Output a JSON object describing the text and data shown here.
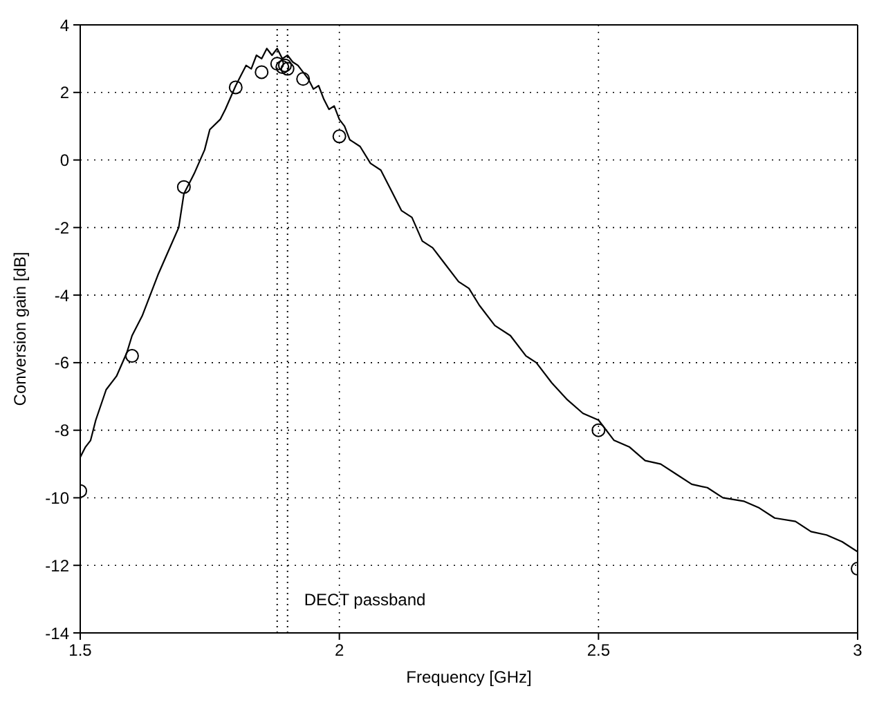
{
  "chart_data": {
    "type": "line",
    "xlabel": "Frequency [GHz]",
    "ylabel": "Conversion gain [dB]",
    "xlim": [
      1.5,
      3
    ],
    "xticks": [
      1.5,
      2,
      2.5,
      3
    ],
    "ylim": [
      -14,
      4
    ],
    "yticks": [
      -14,
      -12,
      -10,
      -8,
      -6,
      -4,
      -2,
      0,
      2,
      4
    ],
    "grid": true,
    "legend": false,
    "series": [
      {
        "type": "line",
        "color": "#000000",
        "marker": "none",
        "line_style": "solid",
        "x": [
          1.5,
          1.51,
          1.52,
          1.53,
          1.55,
          1.57,
          1.59,
          1.6,
          1.62,
          1.64,
          1.65,
          1.67,
          1.69,
          1.7,
          1.72,
          1.74,
          1.75,
          1.77,
          1.78,
          1.8,
          1.81,
          1.82,
          1.83,
          1.84,
          1.85,
          1.86,
          1.87,
          1.88,
          1.89,
          1.9,
          1.91,
          1.92,
          1.93,
          1.94,
          1.95,
          1.96,
          1.97,
          1.98,
          1.99,
          2.0,
          2.01,
          2.02,
          2.04,
          2.06,
          2.08,
          2.1,
          2.12,
          2.14,
          2.16,
          2.18,
          2.2,
          2.23,
          2.25,
          2.27,
          2.3,
          2.33,
          2.36,
          2.38,
          2.41,
          2.44,
          2.47,
          2.5,
          2.53,
          2.56,
          2.59,
          2.62,
          2.65,
          2.68,
          2.71,
          2.74,
          2.78,
          2.81,
          2.84,
          2.88,
          2.91,
          2.94,
          2.97,
          3.0
        ],
        "values": [
          -8.8,
          -8.5,
          -8.3,
          -7.7,
          -6.8,
          -6.4,
          -5.7,
          -5.2,
          -4.6,
          -3.8,
          -3.4,
          -2.7,
          -2.0,
          -1.0,
          -0.4,
          0.3,
          0.9,
          1.2,
          1.5,
          2.2,
          2.5,
          2.8,
          2.7,
          3.1,
          3.0,
          3.3,
          3.1,
          3.3,
          3.0,
          3.1,
          2.9,
          2.8,
          2.6,
          2.4,
          2.1,
          2.2,
          1.8,
          1.5,
          1.6,
          1.2,
          1.0,
          0.6,
          0.4,
          -0.1,
          -0.3,
          -0.9,
          -1.5,
          -1.7,
          -2.4,
          -2.6,
          -3.0,
          -3.6,
          -3.8,
          -4.3,
          -4.9,
          -5.2,
          -5.8,
          -6.0,
          -6.6,
          -7.1,
          -7.5,
          -7.7,
          -8.3,
          -8.5,
          -8.9,
          -9.0,
          -9.3,
          -9.6,
          -9.7,
          -10.0,
          -10.1,
          -10.3,
          -10.6,
          -10.7,
          -11.0,
          -11.1,
          -11.3,
          -11.6
        ]
      },
      {
        "type": "scatter",
        "color": "#000000",
        "marker": "circle",
        "x": [
          1.5,
          1.6,
          1.7,
          1.8,
          1.85,
          1.88,
          1.89,
          1.895,
          1.9,
          1.93,
          2.0,
          2.5,
          3.0
        ],
        "values": [
          -9.8,
          -5.8,
          -0.8,
          2.15,
          2.6,
          2.85,
          2.75,
          2.8,
          2.7,
          2.4,
          0.7,
          -8.0,
          -12.1
        ]
      }
    ],
    "ref_lines": [
      {
        "axis": "x",
        "value": 1.88,
        "color": "#000000",
        "line_style": "dotted"
      },
      {
        "axis": "x",
        "value": 1.9,
        "color": "#000000",
        "line_style": "dotted"
      }
    ],
    "annotations": [
      {
        "text": "DECT passband",
        "x": 1.9,
        "y": -13
      }
    ]
  }
}
